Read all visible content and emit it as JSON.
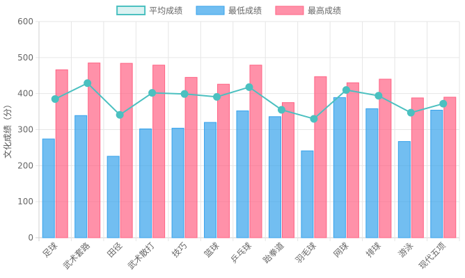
{
  "chart_data": {
    "type": "bar",
    "title": "",
    "xlabel": "",
    "ylabel": "文化成绩（分）",
    "ylim": [
      0,
      600
    ],
    "yticks": [
      0,
      100,
      200,
      300,
      400,
      500,
      600
    ],
    "grid": true,
    "legend_position": "top-center",
    "categories": [
      "足球",
      "武术套路",
      "田径",
      "武术散打",
      "技巧",
      "篮球",
      "乒乓球",
      "跆拳道",
      "羽毛球",
      "网球",
      "排球",
      "游泳",
      "现代五项"
    ],
    "series": [
      {
        "name": "平均成绩",
        "type": "line",
        "color": "#4bc0c0",
        "values": [
          385,
          429,
          341,
          402,
          399,
          391,
          418,
          355,
          330,
          410,
          394,
          347,
          372
        ]
      },
      {
        "name": "最低成绩",
        "type": "bar",
        "color": "#36a2eb",
        "values": [
          274,
          339,
          226,
          302,
          304,
          320,
          352,
          336,
          241,
          389,
          358,
          267,
          354
        ]
      },
      {
        "name": "最高成绩",
        "type": "bar",
        "color": "#ff6384",
        "values": [
          466,
          485,
          484,
          479,
          445,
          426,
          479,
          375,
          447,
          430,
          440,
          388,
          390
        ]
      }
    ]
  }
}
